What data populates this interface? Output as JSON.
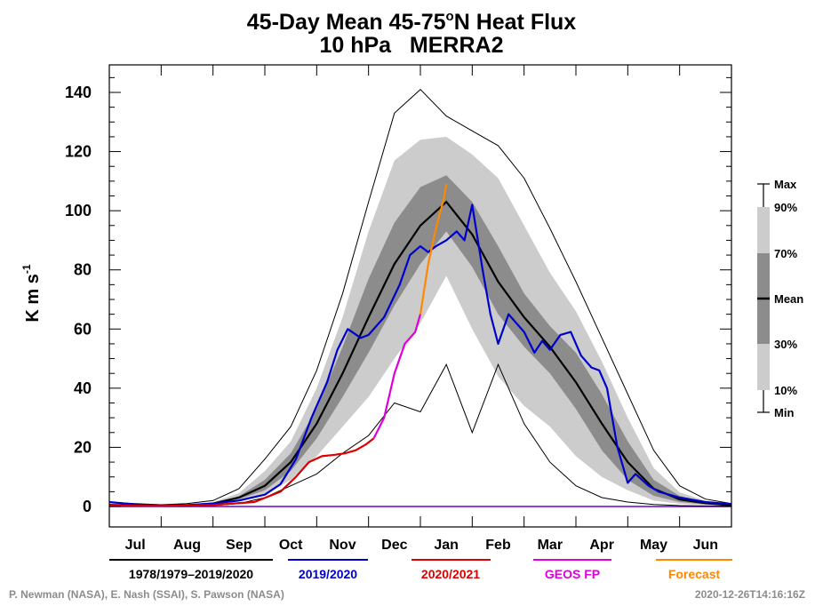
{
  "chart_data": {
    "type": "area",
    "title_prefix": "45-Day Mean 45-75",
    "title_degree": "o",
    "title_suffix": "N Heat Flux",
    "subtitle": "10 hPa   MERRA2",
    "ylabel_main": "K m s",
    "ylabel_sup": "-1",
    "ylim": [
      0,
      150
    ],
    "yticks": [
      0,
      20,
      40,
      60,
      80,
      100,
      120,
      140
    ],
    "xlim": [
      0,
      12
    ],
    "months": [
      "Jul",
      "Aug",
      "Sep",
      "Oct",
      "Nov",
      "Dec",
      "Jan",
      "Feb",
      "Mar",
      "Apr",
      "May",
      "Jun"
    ],
    "x": [
      0.0,
      0.5,
      1.0,
      1.5,
      2.0,
      2.5,
      3.0,
      3.5,
      4.0,
      4.5,
      5.0,
      5.5,
      6.0,
      6.5,
      7.0,
      7.5,
      8.0,
      8.5,
      9.0,
      9.5,
      10.0,
      10.5,
      11.0,
      11.5,
      12.0
    ],
    "percentile_bands": {
      "max": [
        1.5,
        1.0,
        0.6,
        1.0,
        2.0,
        6.0,
        16.0,
        27.0,
        46.0,
        72.0,
        103.0,
        133.0,
        141.0,
        132.0,
        127.0,
        122.0,
        111.0,
        94.0,
        76.0,
        57.0,
        38.0,
        19.0,
        7.0,
        2.5,
        1.0
      ],
      "p90": [
        0.9,
        0.6,
        0.4,
        0.7,
        1.5,
        4.5,
        12.0,
        22.0,
        40.0,
        64.0,
        93.0,
        117.0,
        124.0,
        125.0,
        119.0,
        111.0,
        95.0,
        79.0,
        66.0,
        49.0,
        30.0,
        13.0,
        4.8,
        1.9,
        0.8
      ],
      "p70": [
        0.7,
        0.45,
        0.3,
        0.5,
        1.2,
        3.5,
        9.0,
        18.0,
        33.0,
        54.0,
        77.0,
        96.0,
        108.0,
        112.0,
        103.0,
        88.0,
        72.0,
        61.0,
        52.0,
        38.0,
        22.0,
        9.0,
        3.6,
        1.5,
        0.6
      ],
      "mean": [
        0.5,
        0.35,
        0.25,
        0.4,
        1.0,
        3.0,
        7.0,
        15.0,
        28.0,
        45.0,
        64.0,
        82.0,
        95.0,
        103.0,
        92.0,
        76.0,
        64.0,
        54.0,
        42.0,
        28.0,
        15.0,
        6.0,
        2.4,
        1.1,
        0.4
      ],
      "p30": [
        0.35,
        0.25,
        0.18,
        0.3,
        0.8,
        2.5,
        5.5,
        12.0,
        23.0,
        37.0,
        52.0,
        68.0,
        82.0,
        93.0,
        81.0,
        65.0,
        54.0,
        45.0,
        33.0,
        19.0,
        9.0,
        3.6,
        1.5,
        0.7,
        0.3
      ],
      "p10": [
        0.2,
        0.15,
        0.1,
        0.2,
        0.5,
        1.8,
        4.0,
        9.0,
        17.0,
        27.0,
        37.0,
        50.0,
        62.0,
        78.0,
        60.0,
        44.0,
        34.0,
        27.0,
        17.0,
        10.0,
        5.5,
        2.0,
        0.9,
        0.4,
        0.2
      ],
      "min": [
        0.1,
        0.05,
        0.05,
        0.1,
        0.3,
        1.0,
        3.0,
        7.0,
        11.0,
        18.0,
        24.0,
        35.0,
        32.0,
        48.0,
        25.0,
        48.0,
        28.0,
        15.0,
        7.0,
        3.0,
        1.5,
        0.7,
        0.3,
        0.15,
        0.1
      ]
    },
    "series": [
      {
        "name": "2019/2020",
        "x": [
          0.0,
          0.5,
          1.0,
          1.5,
          2.0,
          2.5,
          3.0,
          3.3,
          3.6,
          3.9,
          4.2,
          4.4,
          4.6,
          4.85,
          5.0,
          5.3,
          5.6,
          5.8,
          6.0,
          6.15,
          6.3,
          6.5,
          6.7,
          6.85,
          7.0,
          7.2,
          7.35,
          7.5,
          7.7,
          8.0,
          8.2,
          8.35,
          8.5,
          8.7,
          8.9,
          9.1,
          9.3,
          9.45,
          9.6,
          9.8,
          10.0,
          10.15,
          10.4,
          10.6,
          11.0,
          11.5,
          12.0
        ],
        "values": [
          1.5,
          0.7,
          0.4,
          0.5,
          1.0,
          2.0,
          4.0,
          7.5,
          16.0,
          30.0,
          42.0,
          53.0,
          60.0,
          57.0,
          58.0,
          64.0,
          75.0,
          85.0,
          88.0,
          86.0,
          88.0,
          90.0,
          93.0,
          90.0,
          102.0,
          80.0,
          65.0,
          55.0,
          65.0,
          59.0,
          52.0,
          56.0,
          53.0,
          58.0,
          59.0,
          51.0,
          47.0,
          46.0,
          40.0,
          20.0,
          8.0,
          11.0,
          7.0,
          5.0,
          3.0,
          1.5,
          0.8
        ],
        "color": "#0000cc"
      },
      {
        "name": "2020/2021",
        "x": [
          0.0,
          1.0,
          2.0,
          2.8,
          3.3,
          3.6,
          3.85,
          4.1,
          4.35,
          4.55,
          4.75,
          4.95,
          5.1
        ],
        "values": [
          0.3,
          0.2,
          0.5,
          1.5,
          5.0,
          10.0,
          15.0,
          17.0,
          17.5,
          18.0,
          19.0,
          21.0,
          23.0
        ],
        "color": "#dd0000"
      },
      {
        "name": "GEOS FP",
        "x": [
          5.1,
          5.3,
          5.5,
          5.7,
          5.9,
          6.0
        ],
        "values": [
          23.0,
          30.0,
          45.0,
          55.0,
          59.0,
          65.0
        ],
        "color": "#dd00dd"
      },
      {
        "name": "Forecast",
        "x": [
          6.0,
          6.15,
          6.3,
          6.45,
          6.5
        ],
        "values": [
          65.0,
          82.0,
          94.0,
          104.0,
          109.0
        ],
        "color": "#ff8800"
      }
    ],
    "zero_line_color": "#6a00c8",
    "band_colors": {
      "outer": "#cccccc",
      "inner": "#8c8c8c"
    },
    "key_labels": [
      "Max",
      "90%",
      "70%",
      "Mean",
      "30%",
      "10%",
      "Min"
    ]
  },
  "legend": {
    "climatology": "1978/1979–2019/2020",
    "current_year": "2019/2020",
    "next_year": "2020/2021",
    "geos": "GEOS FP",
    "forecast": "Forecast"
  },
  "colors": {
    "climatology": "#000000",
    "current_year": "#0000cc",
    "next_year": "#dd0000",
    "geos": "#dd00dd",
    "forecast": "#ff8800"
  },
  "credits": {
    "authors": "P. Newman (NASA), E. Nash (SSAI), S. Pawson (NASA)",
    "timestamp": "2020-12-26T14:16:16Z"
  }
}
